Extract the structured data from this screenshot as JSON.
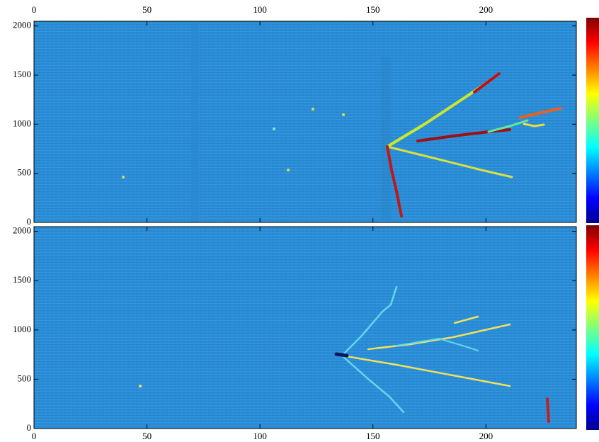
{
  "chart_data": [
    {
      "type": "heatmap",
      "xlim": [
        0,
        240
      ],
      "ylim": [
        0,
        2048
      ],
      "xticks": [
        0,
        50,
        100,
        150,
        200
      ],
      "yticks": [
        0,
        500,
        1000,
        1500,
        2000
      ],
      "x_label_position": "top",
      "colorbar": true
    },
    {
      "type": "heatmap",
      "xlim": [
        0,
        240
      ],
      "ylim": [
        0,
        2048
      ],
      "xticks": [
        0,
        50,
        100,
        150,
        200
      ],
      "yticks": [
        0,
        500,
        1000,
        1500,
        2000
      ],
      "x_label_position": "bottom",
      "colorbar": true
    }
  ]
}
